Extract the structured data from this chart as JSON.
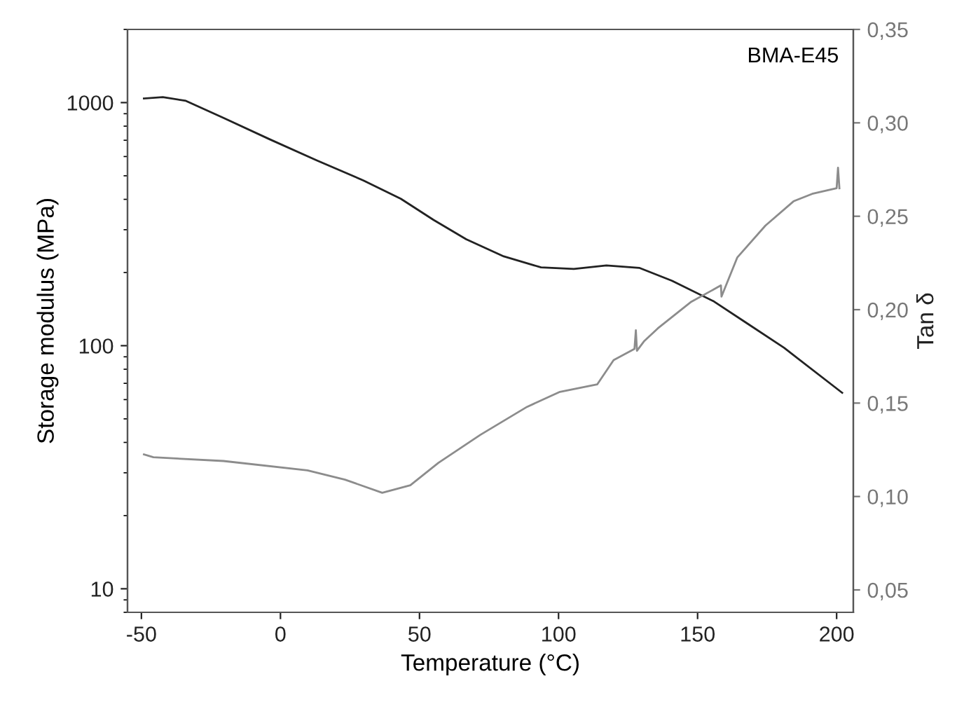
{
  "chart_data": {
    "type": "line",
    "xlabel": "Temperature (°C)",
    "ylabel": "Storage modulus (MPa)",
    "y2label": "Tan δ",
    "annotations": [
      "BMA-E45"
    ],
    "log": "y",
    "grid": false,
    "legend": false,
    "marker": "none",
    "line_style": "solid",
    "xlim": [
      -55,
      206
    ],
    "xticks": [
      -50,
      0,
      50,
      100,
      150,
      200
    ],
    "ylim": [
      8,
      2000
    ],
    "yticks": [
      10,
      100,
      1000
    ],
    "y2lim": [
      0.038,
      0.35
    ],
    "y2ticks": [
      {
        "value": 0.05,
        "label": "0,05"
      },
      {
        "value": 0.1,
        "label": "0,10"
      },
      {
        "value": 0.15,
        "label": "0,15"
      },
      {
        "value": 0.2,
        "label": "0,20"
      },
      {
        "value": 0.25,
        "label": "0,25"
      },
      {
        "value": 0.3,
        "label": "0,30"
      },
      {
        "value": 0.35,
        "label": "0,35"
      }
    ],
    "series": [
      {
        "color": "#222222",
        "x": [
          -49.1,
          -42.3,
          -34,
          -20.5,
          -3.7,
          13.1,
          29.9,
          43.3,
          55.1,
          66.8,
          80.3,
          93.7,
          105.5,
          117.2,
          129,
          140.8,
          155.9,
          167.6,
          181.1,
          202
        ],
        "values": [
          1040,
          1054,
          1017,
          865,
          705,
          578,
          478,
          402,
          329,
          274,
          233,
          210,
          207,
          214,
          209,
          185,
          152,
          124,
          98,
          64
        ]
      },
      {
        "color": "#8c8c8c",
        "axis": "y2",
        "x": [
          -49.1,
          -45.7,
          -20.5,
          9.7,
          23.2,
          36.6,
          46.7,
          56.8,
          71.9,
          88.7,
          100.5,
          113.9,
          119.8,
          127.3,
          127.8,
          128.2,
          130.7,
          135.7,
          147.5,
          158.4,
          158.6,
          164.3,
          174.4,
          184.5,
          191.2,
          200,
          200.5,
          201
        ],
        "values": [
          0.1225,
          0.121,
          0.119,
          0.114,
          0.109,
          0.102,
          0.106,
          0.118,
          0.133,
          0.148,
          0.156,
          0.16,
          0.173,
          0.179,
          0.189,
          0.178,
          0.183,
          0.19,
          0.204,
          0.213,
          0.207,
          0.228,
          0.245,
          0.258,
          0.262,
          0.265,
          0.276,
          0.265
        ]
      }
    ]
  }
}
